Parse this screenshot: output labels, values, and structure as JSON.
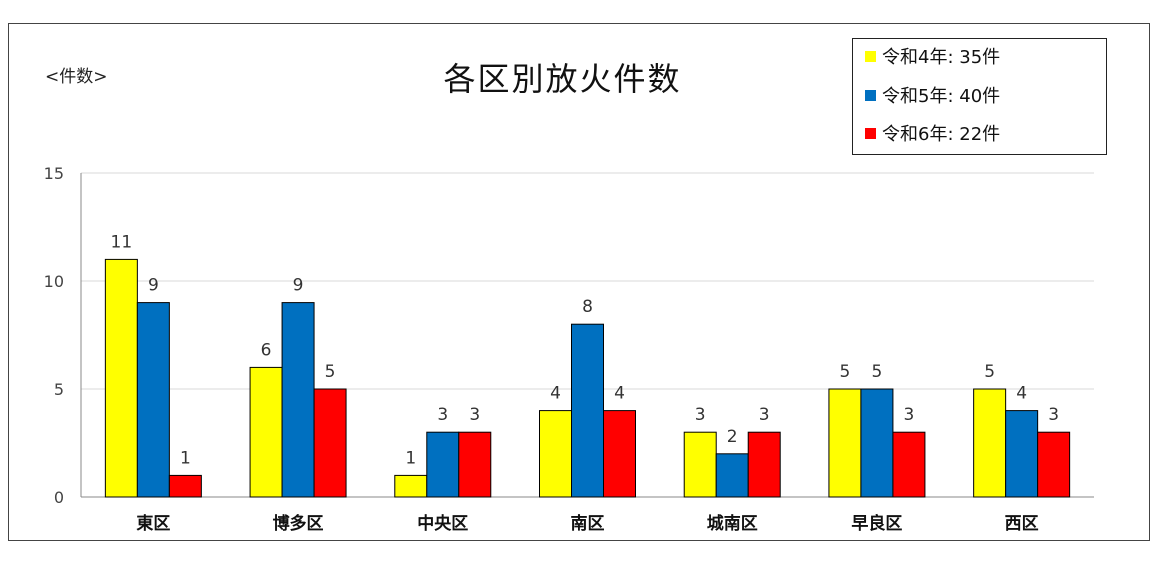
{
  "chart_data": {
    "type": "bar",
    "title": "各区別放火件数",
    "unit_label": "<件数>",
    "categories": [
      "東区",
      "博多区",
      "中央区",
      "南区",
      "城南区",
      "早良区",
      "西区"
    ],
    "series": [
      {
        "name": "令和4年: 35件",
        "color": "#FFFF00",
        "values": [
          11,
          6,
          1,
          4,
          3,
          5,
          5
        ]
      },
      {
        "name": "令和5年: 40件",
        "color": "#0070C0",
        "values": [
          9,
          9,
          3,
          8,
          2,
          5,
          4
        ]
      },
      {
        "name": "令和6年: 22件",
        "color": "#FF0000",
        "values": [
          1,
          5,
          3,
          4,
          3,
          3,
          3
        ]
      }
    ],
    "ylim": [
      0,
      15
    ],
    "yticks": [
      0,
      5,
      10,
      15
    ],
    "grid": true,
    "legend_position": "top-right"
  }
}
